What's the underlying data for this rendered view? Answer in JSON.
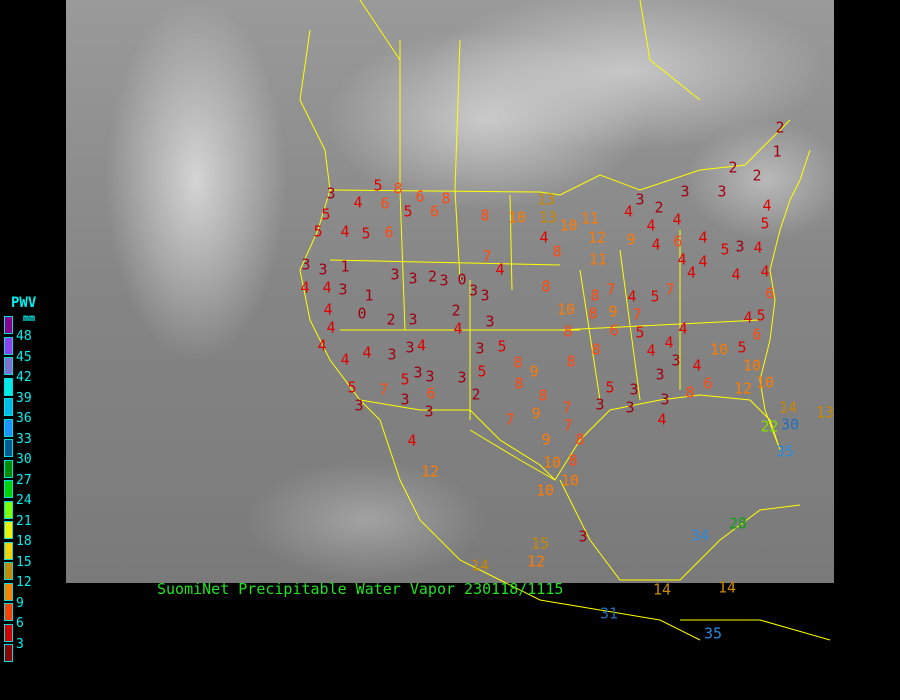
{
  "legend": {
    "title": "PWV",
    "unit": "mm",
    "labels": [
      "48",
      "45",
      "42",
      "39",
      "36",
      "33",
      "30",
      "27",
      "24",
      "21",
      "18",
      "15",
      "12",
      "9",
      "6",
      "3"
    ],
    "colors": [
      "#8b008b",
      "#9040f0",
      "#8070d0",
      "#00e8e8",
      "#00b8e8",
      "#1e90ff",
      "#005a90",
      "#008a00",
      "#00d000",
      "#80ff00",
      "#f0f000",
      "#ffd000",
      "#c88800",
      "#ff8000",
      "#ff4000",
      "#d00000",
      "#8b0000"
    ]
  },
  "caption": "SuomiNet Precipitable Water Vapor 230118/1115",
  "boundary_color": "#ffff00",
  "stations": [
    5,
    8,
    6,
    8,
    3,
    4,
    6,
    5,
    6,
    8,
    10,
    13,
    13,
    10,
    11,
    12,
    9,
    4,
    8,
    11,
    5,
    4,
    5,
    6,
    5,
    3,
    3,
    1,
    4,
    4,
    3,
    1,
    0,
    2,
    3,
    4,
    4,
    4,
    4,
    4,
    3,
    3,
    4,
    3,
    3,
    5,
    6,
    3,
    7,
    5,
    3,
    3,
    4,
    12,
    3,
    5,
    2,
    3,
    5,
    8,
    9,
    8,
    8,
    9,
    7,
    7,
    7,
    9,
    8,
    10,
    8,
    10,
    10,
    3,
    5,
    3,
    3,
    3,
    3,
    4,
    8,
    6,
    12,
    10,
    10,
    10,
    5,
    6,
    4,
    4,
    3,
    4,
    4,
    4,
    3,
    4,
    4,
    4,
    6,
    5,
    2,
    1,
    2,
    2,
    4,
    5,
    3,
    3,
    3,
    4,
    2,
    4,
    4,
    4,
    6,
    4,
    4,
    5,
    4,
    4,
    7,
    5,
    4,
    7,
    8,
    10,
    8,
    8,
    9,
    7,
    5,
    6,
    8,
    8,
    8,
    7,
    4,
    0,
    3,
    2,
    3,
    3,
    3,
    3,
    2,
    4,
    3,
    3,
    15,
    12,
    14,
    31,
    14,
    35,
    14,
    34,
    28,
    35,
    30,
    22,
    14,
    13,
    32
  ]
}
